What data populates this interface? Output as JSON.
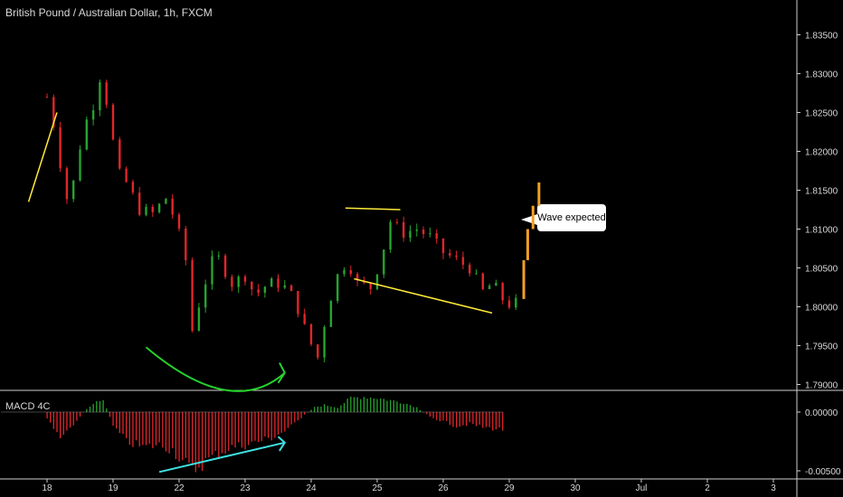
{
  "header": {
    "title": "British Pound / Australian Dollar, 1h, FXCM"
  },
  "indicator": {
    "title": "MACD 4C"
  },
  "annotation": {
    "label": "Wave expected"
  },
  "colors": {
    "up": "#26a42e",
    "down": "#e0262b",
    "projection": "#f0a022",
    "yellow": "#ffe93a",
    "green_arc": "#25d02c",
    "cyan": "#40e0e0"
  },
  "chart_data": [
    {
      "type": "candlestick",
      "title": "British Pound / Australian Dollar, 1h, FXCM",
      "y_ticks": [
        "1.83500",
        "1.83000",
        "1.82500",
        "1.82000",
        "1.81500",
        "1.81000",
        "1.80500",
        "1.80000",
        "1.79500",
        "1.79000"
      ],
      "ylim": [
        1.7875,
        1.8375
      ],
      "x_ticks": [
        "18",
        "19",
        "22",
        "23",
        "24",
        "25",
        "26",
        "29",
        "30",
        "Jul",
        "2",
        "3"
      ],
      "x_positions_in_days": [
        0,
        1,
        2,
        3,
        4,
        5,
        6,
        7,
        8,
        9,
        10,
        11
      ],
      "candles_close_path": [
        [
          0.0,
          1.827
        ],
        [
          0.1,
          1.8235
        ],
        [
          0.2,
          1.8185
        ],
        [
          0.3,
          1.814
        ],
        [
          0.4,
          1.816
        ],
        [
          0.55,
          1.823
        ],
        [
          0.7,
          1.826
        ],
        [
          0.8,
          1.8295
        ],
        [
          0.95,
          1.825
        ],
        [
          1.05,
          1.8175
        ],
        [
          1.2,
          1.816
        ],
        [
          1.4,
          1.8125
        ],
        [
          1.6,
          1.812
        ],
        [
          1.8,
          1.814
        ],
        [
          1.95,
          1.811
        ],
        [
          2.1,
          1.806
        ],
        [
          2.2,
          1.797
        ],
        [
          2.35,
          1.802
        ],
        [
          2.55,
          1.807
        ],
        [
          2.8,
          1.803
        ],
        [
          3.0,
          1.804
        ],
        [
          3.15,
          1.8015
        ],
        [
          3.35,
          1.803
        ],
        [
          3.55,
          1.803
        ],
        [
          3.75,
          1.801
        ],
        [
          3.95,
          1.796
        ],
        [
          4.1,
          1.7935
        ],
        [
          4.25,
          1.8
        ],
        [
          4.4,
          1.804
        ],
        [
          4.55,
          1.806
        ],
        [
          4.7,
          1.803
        ],
        [
          4.9,
          1.8025
        ],
        [
          5.05,
          1.806
        ],
        [
          5.2,
          1.811
        ],
        [
          5.4,
          1.8095
        ],
        [
          5.6,
          1.81
        ],
        [
          5.8,
          1.809
        ],
        [
          6.0,
          1.807
        ],
        [
          6.2,
          1.806
        ],
        [
          6.4,
          1.805
        ],
        [
          6.6,
          1.802
        ],
        [
          6.75,
          1.803
        ],
        [
          6.9,
          1.801
        ],
        [
          7.05,
          1.8
        ],
        [
          7.15,
          1.801
        ]
      ],
      "projection_path": [
        [
          7.15,
          1.801
        ],
        [
          7.22,
          1.806
        ],
        [
          7.28,
          1.81
        ],
        [
          7.36,
          1.813
        ],
        [
          7.45,
          1.816
        ]
      ],
      "annotations": [
        "Wave expected"
      ]
    },
    {
      "type": "histogram",
      "title": "MACD 4C",
      "y_ticks": [
        "0.00000",
        "-0.00500"
      ],
      "ylim": [
        -0.0058,
        0.0015
      ],
      "series_path": [
        [
          0.0,
          -0.0005
        ],
        [
          0.1,
          -0.0015
        ],
        [
          0.2,
          -0.002
        ],
        [
          0.3,
          -0.0018
        ],
        [
          0.45,
          -0.0008
        ],
        [
          0.55,
          0.0
        ],
        [
          0.7,
          0.0008
        ],
        [
          0.85,
          0.001
        ],
        [
          1.0,
          -0.0012
        ],
        [
          1.2,
          -0.0025
        ],
        [
          1.45,
          -0.003
        ],
        [
          1.7,
          -0.0028
        ],
        [
          1.9,
          -0.0032
        ],
        [
          2.05,
          -0.0042
        ],
        [
          2.2,
          -0.005
        ],
        [
          2.4,
          -0.0042
        ],
        [
          2.6,
          -0.0035
        ],
        [
          2.8,
          -0.003
        ],
        [
          3.0,
          -0.0028
        ],
        [
          3.2,
          -0.0025
        ],
        [
          3.4,
          -0.0022
        ],
        [
          3.6,
          -0.0016
        ],
        [
          3.75,
          -0.001
        ],
        [
          3.9,
          -0.0002
        ],
        [
          4.05,
          0.0004
        ],
        [
          4.2,
          0.0006
        ],
        [
          4.4,
          0.0004
        ],
        [
          4.6,
          0.0012
        ],
        [
          4.8,
          0.0013
        ],
        [
          5.0,
          0.0012
        ],
        [
          5.2,
          0.001
        ],
        [
          5.4,
          0.0008
        ],
        [
          5.6,
          0.0004
        ],
        [
          5.8,
          -0.0004
        ],
        [
          6.0,
          -0.0008
        ],
        [
          6.2,
          -0.0012
        ],
        [
          6.4,
          -0.001
        ],
        [
          6.6,
          -0.0013
        ],
        [
          6.75,
          -0.0014
        ],
        [
          6.9,
          -0.0015
        ]
      ]
    }
  ]
}
